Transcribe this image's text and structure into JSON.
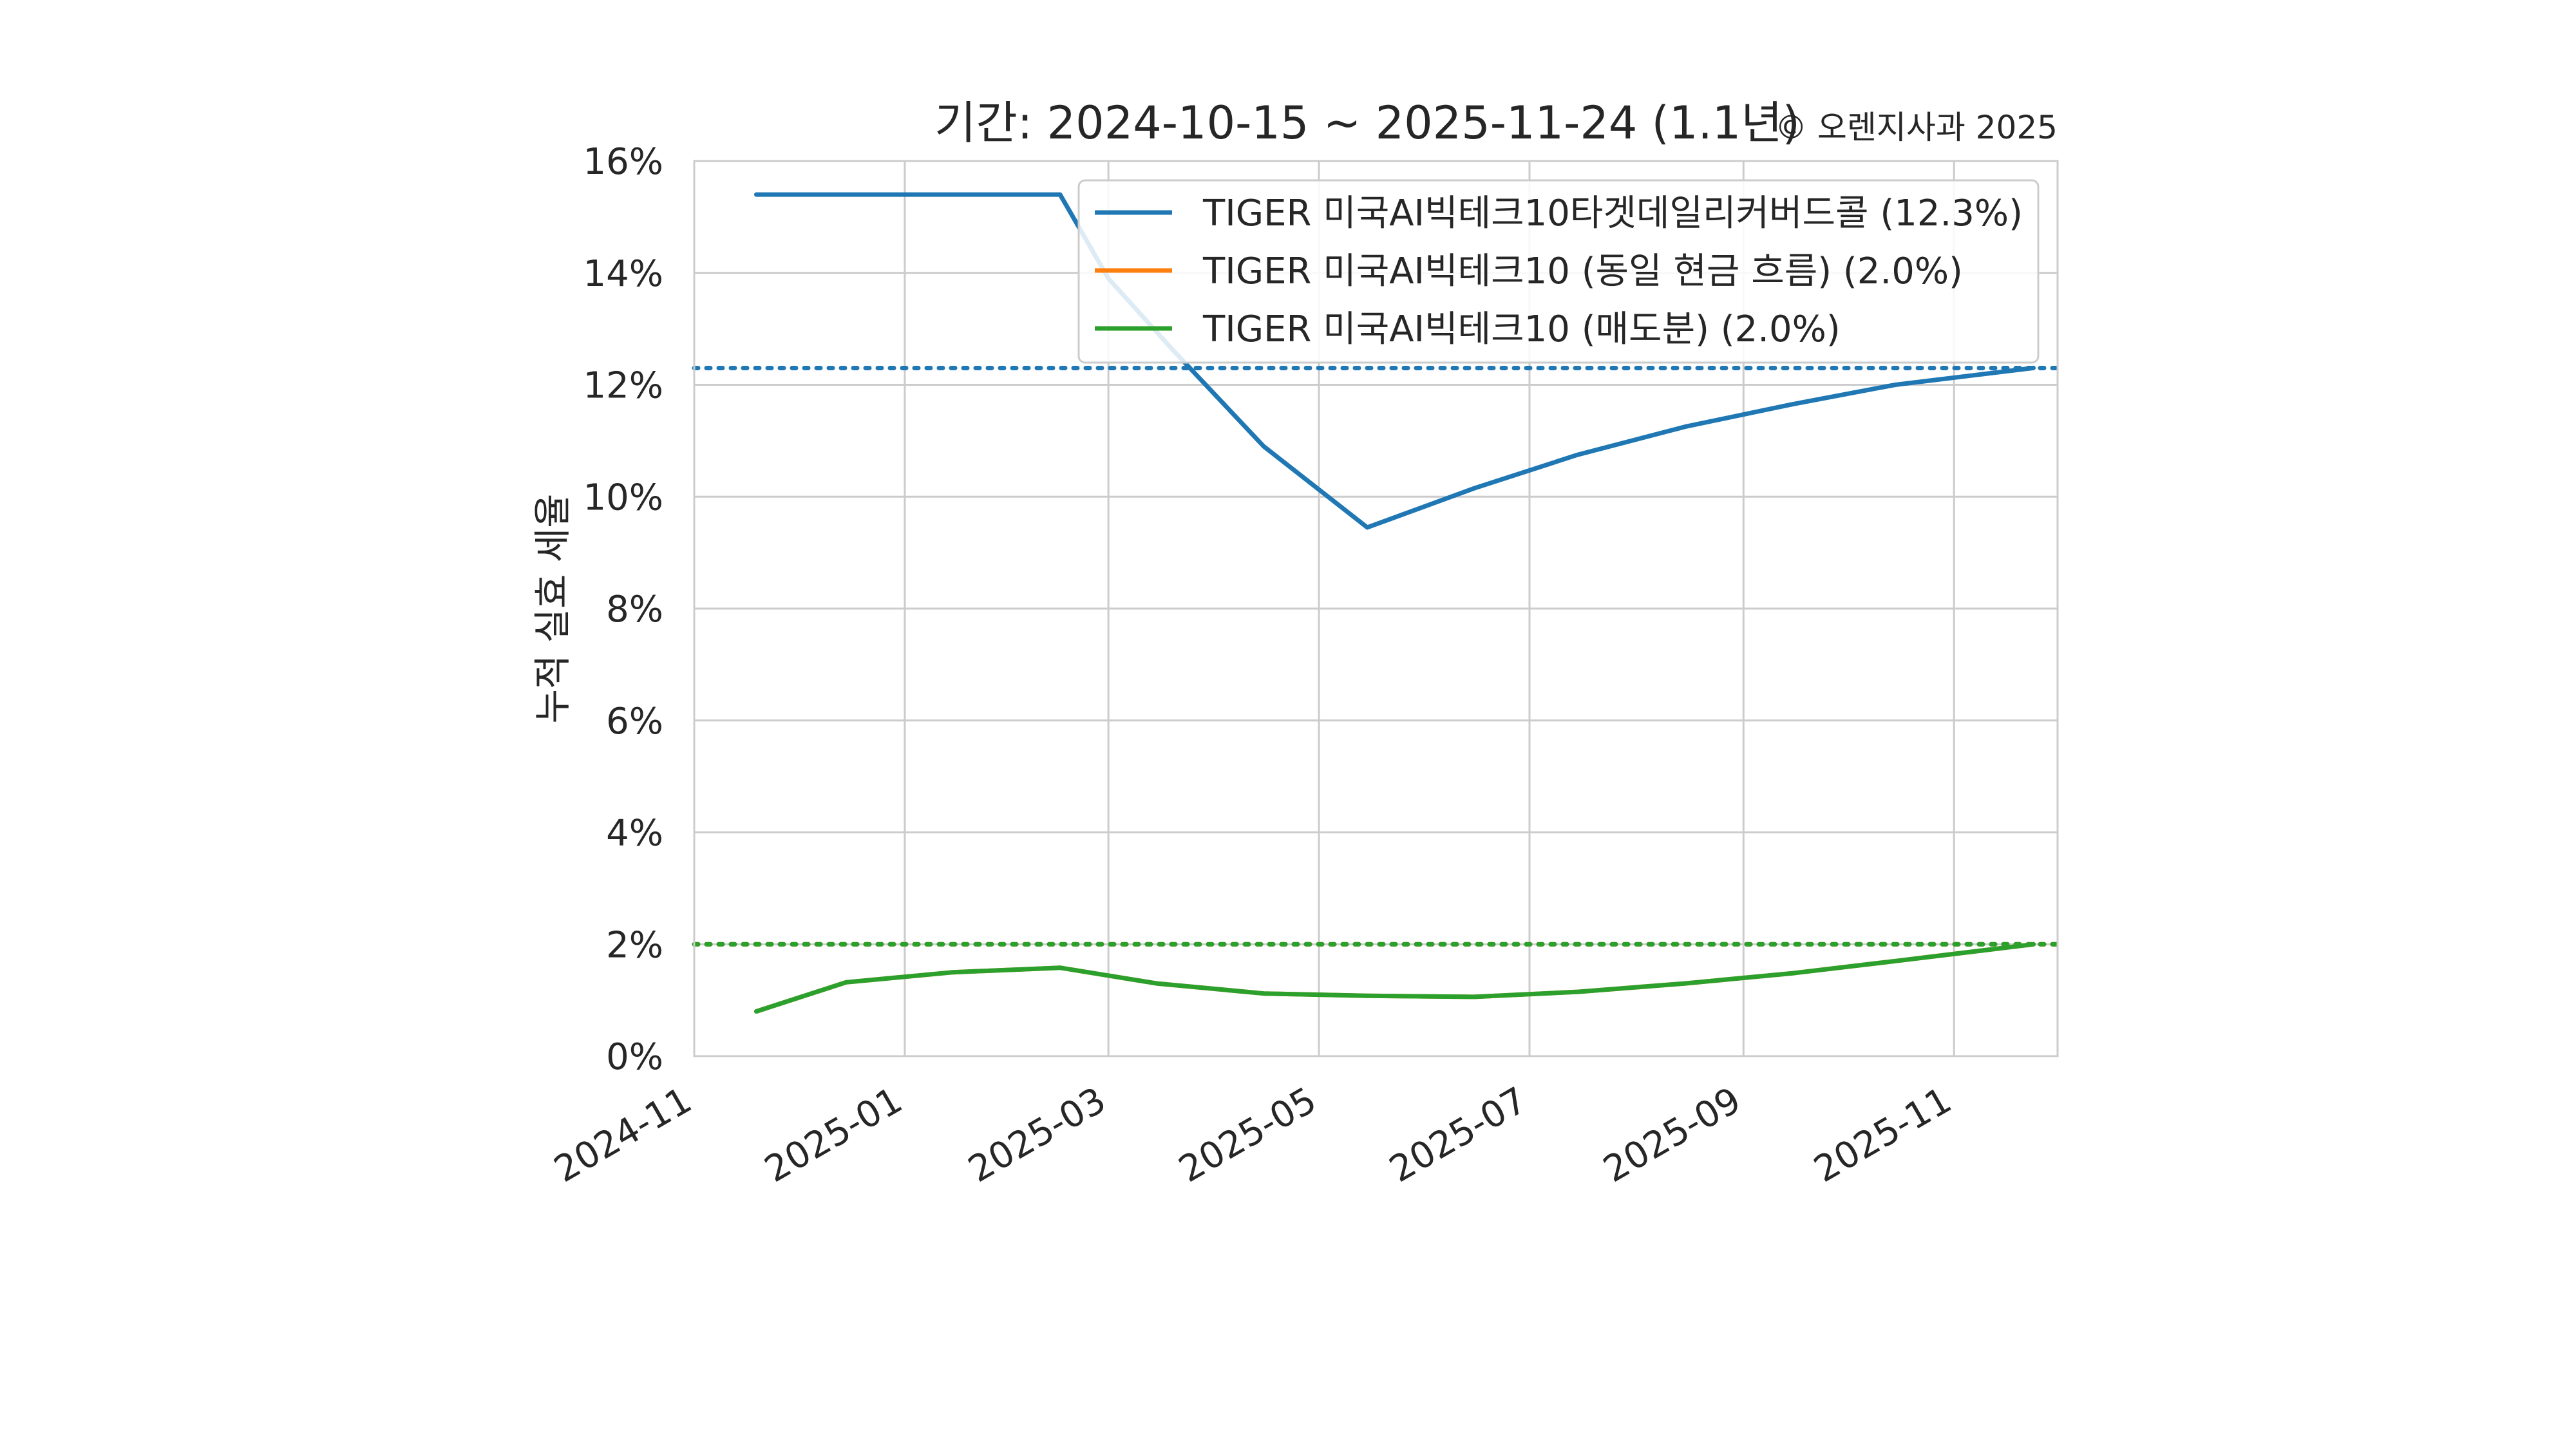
{
  "chart_data": {
    "type": "line",
    "title": "기간: 2024-10-15 ~ 2025-11-24 (1.1년)",
    "credit": "© 오렌지사과 2025",
    "xlabel": "",
    "ylabel": "누적 실효 세율",
    "xlim": [
      "2024-11-01",
      "2025-12-01"
    ],
    "ylim": [
      0,
      16
    ],
    "grid": true,
    "legend_position": "top-right",
    "x_ticks": [
      "2024-11",
      "2025-01",
      "2025-03",
      "2025-05",
      "2025-07",
      "2025-09",
      "2025-11"
    ],
    "x_tick_dates": [
      "2024-11-01",
      "2025-01-01",
      "2025-03-01",
      "2025-05-01",
      "2025-07-01",
      "2025-09-01",
      "2025-11-01"
    ],
    "y_ticks": [
      "0%",
      "2%",
      "4%",
      "6%",
      "8%",
      "10%",
      "12%",
      "14%",
      "16%"
    ],
    "y_tick_values": [
      0,
      2,
      4,
      6,
      8,
      10,
      12,
      14,
      16
    ],
    "series": [
      {
        "name": "TIGER 미국AI빅테크10타겟데일리커버드콜 (12.3%)",
        "color": "#1f77b4",
        "reference": 12.3,
        "x": [
          "2024-11-19",
          "2025-01-01",
          "2025-02-15",
          "2025-03-01",
          "2025-03-20",
          "2025-04-15",
          "2025-05-15",
          "2025-06-15",
          "2025-07-15",
          "2025-08-15",
          "2025-09-15",
          "2025-10-15",
          "2025-11-24"
        ],
        "y": [
          15.4,
          15.4,
          15.4,
          13.9,
          12.6,
          10.9,
          9.45,
          10.15,
          10.75,
          11.25,
          11.65,
          12.0,
          12.3
        ]
      },
      {
        "name": "TIGER 미국AI빅테크10 (동일 현금 흐름) (2.0%)",
        "color": "#ff7f0e",
        "reference": 2.0,
        "x": [
          "2024-11-19",
          "2024-12-15",
          "2025-01-15",
          "2025-02-15",
          "2025-03-15",
          "2025-04-15",
          "2025-05-15",
          "2025-06-15",
          "2025-07-15",
          "2025-08-15",
          "2025-09-15",
          "2025-10-15",
          "2025-11-24"
        ],
        "y": [
          0.8,
          1.32,
          1.5,
          1.58,
          1.3,
          1.12,
          1.08,
          1.06,
          1.15,
          1.3,
          1.48,
          1.7,
          2.0
        ]
      },
      {
        "name": "TIGER 미국AI빅테크10 (매도분) (2.0%)",
        "color": "#2ca02c",
        "reference": 2.0,
        "x": [
          "2024-11-19",
          "2024-12-15",
          "2025-01-15",
          "2025-02-15",
          "2025-03-15",
          "2025-04-15",
          "2025-05-15",
          "2025-06-15",
          "2025-07-15",
          "2025-08-15",
          "2025-09-15",
          "2025-10-15",
          "2025-11-24"
        ],
        "y": [
          0.8,
          1.32,
          1.5,
          1.58,
          1.3,
          1.12,
          1.08,
          1.06,
          1.15,
          1.3,
          1.48,
          1.7,
          2.0
        ]
      }
    ]
  }
}
